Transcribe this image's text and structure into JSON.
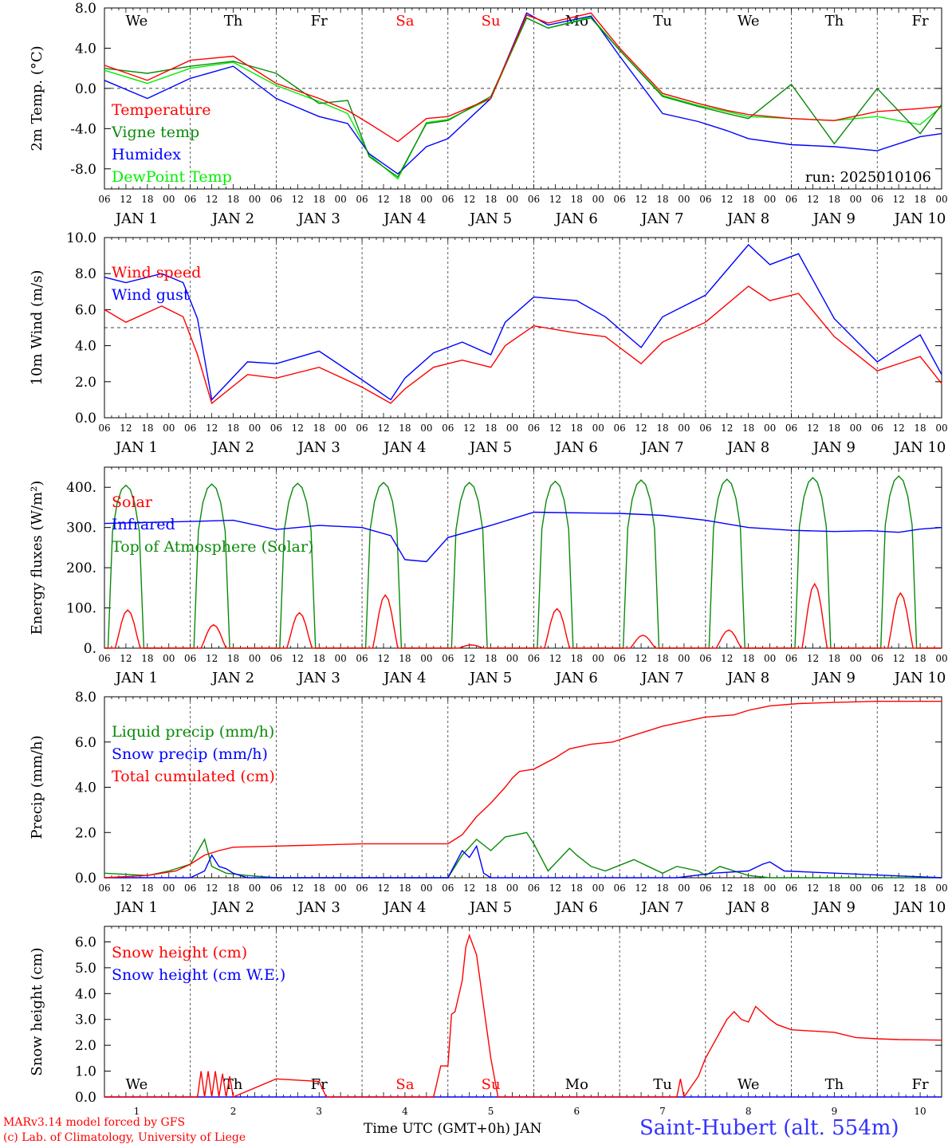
{
  "colors": {
    "red": "#ff0000",
    "green": "#0a8a0a",
    "blue": "#0000ff",
    "lightgreen": "#00ee00",
    "saturday_sunday": "#ff0000"
  },
  "x_axis": {
    "hour_ticks": [
      "00",
      "06",
      "12",
      "18"
    ],
    "day_labels": [
      "JAN  1",
      "JAN  2",
      "JAN  3",
      "JAN  4",
      "JAN  5",
      "JAN  6",
      "JAN  7",
      "JAN  8",
      "JAN  9",
      "JAN 10"
    ],
    "weekday_labels": [
      "We",
      "Th",
      "Fr",
      "Sa",
      "Su",
      "Mo",
      "Tu",
      "We",
      "Th",
      "Fr"
    ],
    "weekend_indices": [
      3,
      4
    ],
    "bottom_day_numbers": [
      "1",
      "2",
      "3",
      "4",
      "5",
      "6",
      "7",
      "8",
      "9",
      "10"
    ],
    "bottom_xlabel": "Time UTC (GMT+0h) JAN"
  },
  "footer": {
    "model": "MARv3.14 model forced by GFS",
    "lab": "(c) Lab. of Climatology, University of Liege",
    "station": "Saint-Hubert (alt. 554m)"
  },
  "chart_data": [
    {
      "type": "line",
      "ylabel": "2m Temp. (°C)",
      "ylim": [
        -10,
        8
      ],
      "yticks": [
        "8.0",
        "4.0",
        "0.0",
        "-4.0",
        "-8.0"
      ],
      "ytick_values": [
        8,
        4,
        0,
        -4,
        -8
      ],
      "run_label": "run: 2025010106",
      "x_hours": [
        0,
        12,
        24,
        36,
        48,
        60,
        68,
        74,
        82,
        90,
        96,
        108,
        118,
        124,
        136,
        144,
        156,
        166,
        174,
        180,
        192,
        204,
        216,
        228,
        234
      ],
      "series": [
        {
          "name": "Temperature",
          "color": "red",
          "values": [
            2.3,
            0.8,
            2.8,
            3.2,
            0.5,
            -1.0,
            -2.2,
            -3.5,
            -5.3,
            -3.0,
            -2.8,
            -1.0,
            7.3,
            6.5,
            7.5,
            4.0,
            -0.5,
            -1.5,
            -2.2,
            -2.6,
            -3.0,
            -3.2,
            -2.3,
            -2.0,
            -1.8
          ]
        },
        {
          "name": "Vigne temp",
          "color": "green",
          "values": [
            2.0,
            1.5,
            2.2,
            2.7,
            1.5,
            -1.5,
            -1.2,
            -6.8,
            -8.8,
            -3.5,
            -3.2,
            -0.8,
            7.0,
            6.0,
            7.0,
            3.8,
            -0.8,
            -1.8,
            -2.5,
            -3.0,
            0.4,
            -5.5,
            0.0,
            -4.5,
            -1.6
          ]
        },
        {
          "name": "Humidex",
          "color": "blue",
          "values": [
            0.8,
            -1.0,
            1.0,
            2.2,
            -1.0,
            -2.8,
            -3.5,
            -6.5,
            -8.5,
            -5.8,
            -5.0,
            -1.0,
            7.5,
            6.3,
            7.2,
            3.2,
            -2.5,
            -3.3,
            -4.2,
            -5.0,
            -5.6,
            -5.8,
            -6.2,
            -4.8,
            -4.5
          ]
        },
        {
          "name": "DewPoint Temp",
          "color": "lightgreen",
          "values": [
            1.8,
            0.5,
            2.0,
            2.6,
            0.3,
            -1.3,
            -2.5,
            -6.6,
            -9.0,
            -3.4,
            -3.1,
            -1.0,
            7.0,
            6.0,
            7.1,
            3.8,
            -0.7,
            -1.7,
            -2.3,
            -2.8,
            -3.0,
            -3.2,
            -2.8,
            -3.6,
            -1.8
          ]
        }
      ]
    },
    {
      "type": "line",
      "ylabel": "10m Wind (m/s)",
      "ylim": [
        0,
        10
      ],
      "yticks": [
        "10.0",
        "8.0",
        "6.0",
        "4.0",
        "2.0",
        "0.0"
      ],
      "ytick_values": [
        10,
        8,
        6,
        4,
        2,
        0
      ],
      "refline": 5,
      "x_hours": [
        0,
        6,
        16,
        22,
        26,
        30,
        40,
        48,
        60,
        72,
        80,
        84,
        92,
        100,
        108,
        112,
        120,
        132,
        140,
        150,
        156,
        168,
        180,
        186,
        194,
        204,
        216,
        228,
        234
      ],
      "series": [
        {
          "name": "Wind speed",
          "color": "red",
          "values": [
            6.0,
            5.3,
            6.2,
            5.6,
            3.5,
            0.8,
            2.4,
            2.2,
            2.8,
            1.7,
            0.8,
            1.6,
            2.8,
            3.2,
            2.8,
            4.0,
            5.1,
            4.7,
            4.5,
            3.0,
            4.2,
            5.3,
            7.3,
            6.5,
            6.9,
            4.5,
            2.6,
            3.4,
            1.9
          ]
        },
        {
          "name": "Wind gust",
          "color": "blue",
          "values": [
            7.8,
            7.5,
            8.0,
            7.5,
            5.5,
            1.0,
            3.1,
            3.0,
            3.7,
            2.1,
            1.0,
            2.2,
            3.6,
            4.2,
            3.5,
            5.3,
            6.7,
            6.5,
            5.6,
            3.9,
            5.6,
            6.8,
            9.6,
            8.5,
            9.1,
            5.5,
            3.1,
            4.6,
            2.4
          ]
        }
      ]
    },
    {
      "type": "line",
      "ylabel": "Energy fluxes (W/m²)",
      "ylim": [
        0,
        450
      ],
      "yticks": [
        "400.",
        "300.",
        "200.",
        "100.",
        "0."
      ],
      "ytick_values": [
        400,
        300,
        200,
        100,
        0
      ],
      "daily_solar_peak_top_of_atmosphere": [
        405,
        408,
        410,
        412,
        412,
        415,
        418,
        420,
        424,
        428
      ],
      "daily_solar_peak_surface": [
        95,
        58,
        88,
        132,
        8,
        98,
        32,
        45,
        160,
        137
      ],
      "infrared": {
        "x_hours": [
          0,
          24,
          36,
          48,
          60,
          72,
          80,
          84,
          90,
          96,
          108,
          120,
          144,
          156,
          168,
          180,
          192,
          204,
          214,
          222,
          228,
          234
        ],
        "values": [
          310,
          315,
          318,
          295,
          305,
          300,
          280,
          220,
          215,
          275,
          305,
          338,
          335,
          330,
          318,
          300,
          293,
          290,
          292,
          288,
          296,
          300
        ]
      },
      "series": [
        {
          "name": "Solar",
          "color": "red"
        },
        {
          "name": "Infrared",
          "color": "blue"
        },
        {
          "name": "Top of Atmosphere (Solar)",
          "color": "green"
        }
      ]
    },
    {
      "type": "line",
      "ylabel": "Precip (mm/h)",
      "ylim": [
        0,
        8
      ],
      "yticks": [
        "8.0",
        "6.0",
        "4.0",
        "2.0",
        "0.0"
      ],
      "ytick_values": [
        8,
        6,
        4,
        2,
        0
      ],
      "series": [
        {
          "name": "Liquid precip (mm/h)",
          "color": "green",
          "x_hours": [
            0,
            12,
            18,
            24,
            28,
            30,
            34,
            40,
            48,
            96,
            100,
            104,
            108,
            112,
            118,
            120,
            124,
            130,
            132,
            136,
            140,
            148,
            156,
            160,
            166,
            168,
            172,
            180,
            186,
            234
          ],
          "values": [
            0.2,
            0.1,
            0.3,
            0.6,
            1.7,
            0.5,
            0.2,
            0.1,
            0.0,
            0.0,
            1.0,
            1.7,
            1.2,
            1.8,
            2.0,
            1.5,
            0.3,
            1.3,
            1.0,
            0.5,
            0.3,
            0.8,
            0.2,
            0.5,
            0.3,
            0.1,
            0.5,
            0.1,
            0.0,
            0.0
          ]
        },
        {
          "name": "Snow precip (mm/h)",
          "color": "blue",
          "x_hours": [
            0,
            24,
            28,
            30,
            32,
            34,
            36,
            40,
            48,
            96,
            100,
            102,
            104,
            106,
            108,
            110,
            160,
            170,
            180,
            184,
            186,
            190,
            234
          ],
          "values": [
            0.0,
            0.0,
            0.3,
            1.0,
            0.5,
            0.4,
            0.2,
            0.0,
            0.0,
            0.0,
            1.2,
            0.9,
            1.4,
            0.2,
            0.0,
            0.0,
            0.0,
            0.2,
            0.3,
            0.6,
            0.7,
            0.3,
            0.0
          ]
        },
        {
          "name": "Total cumulated (cm)",
          "color": "red",
          "x_hours": [
            0,
            12,
            20,
            24,
            28,
            32,
            36,
            48,
            60,
            72,
            84,
            96,
            100,
            104,
            108,
            112,
            114,
            116,
            120,
            126,
            130,
            136,
            142,
            148,
            156,
            162,
            168,
            176,
            180,
            186,
            194,
            204,
            216,
            234
          ],
          "values": [
            0.0,
            0.1,
            0.3,
            0.6,
            1.0,
            1.2,
            1.35,
            1.4,
            1.45,
            1.5,
            1.5,
            1.5,
            1.9,
            2.7,
            3.3,
            4.0,
            4.4,
            4.7,
            4.8,
            5.3,
            5.7,
            5.9,
            6.0,
            6.3,
            6.7,
            6.9,
            7.1,
            7.2,
            7.4,
            7.6,
            7.7,
            7.75,
            7.8,
            7.8
          ]
        }
      ]
    },
    {
      "type": "line",
      "ylabel": "Snow height (cm)",
      "ylim": [
        0,
        6.6
      ],
      "yticks": [
        "6.0",
        "5.0",
        "4.0",
        "3.0",
        "2.0",
        "1.0",
        "0.0"
      ],
      "ytick_values": [
        6,
        5,
        4,
        3,
        2,
        1,
        0
      ],
      "series": [
        {
          "name": "Snow height (cm)",
          "color": "red",
          "x_hours": [
            0,
            26,
            27,
            28,
            29,
            30,
            31,
            32,
            33,
            34,
            35,
            36,
            48,
            60,
            62,
            92,
            94,
            96,
            97,
            98,
            100,
            101,
            102,
            104,
            106,
            108,
            110,
            112,
            114,
            116,
            160,
            161,
            162,
            166,
            168,
            170,
            172,
            174,
            176,
            178,
            180,
            182,
            186,
            188,
            192,
            198,
            204,
            210,
            216,
            222,
            234
          ],
          "values": [
            0,
            0,
            1.0,
            0.0,
            1.0,
            0.0,
            1.0,
            0.0,
            0.9,
            0.0,
            0.8,
            0.0,
            0.7,
            0.6,
            0.0,
            0.0,
            1.2,
            1.2,
            3.2,
            3.3,
            4.5,
            5.8,
            6.25,
            5.5,
            3.5,
            1.5,
            0.0,
            0.0,
            0.0,
            0.0,
            0.0,
            0.7,
            0.0,
            0.8,
            1.5,
            2.0,
            2.5,
            3.0,
            3.3,
            3.0,
            2.9,
            3.5,
            3.0,
            2.8,
            2.6,
            2.55,
            2.5,
            2.3,
            2.25,
            2.22,
            2.2
          ]
        },
        {
          "name": "Snow height (cm W.E.)",
          "color": "blue",
          "x_hours": [
            0,
            234
          ],
          "values": [
            0,
            0
          ]
        }
      ]
    }
  ]
}
